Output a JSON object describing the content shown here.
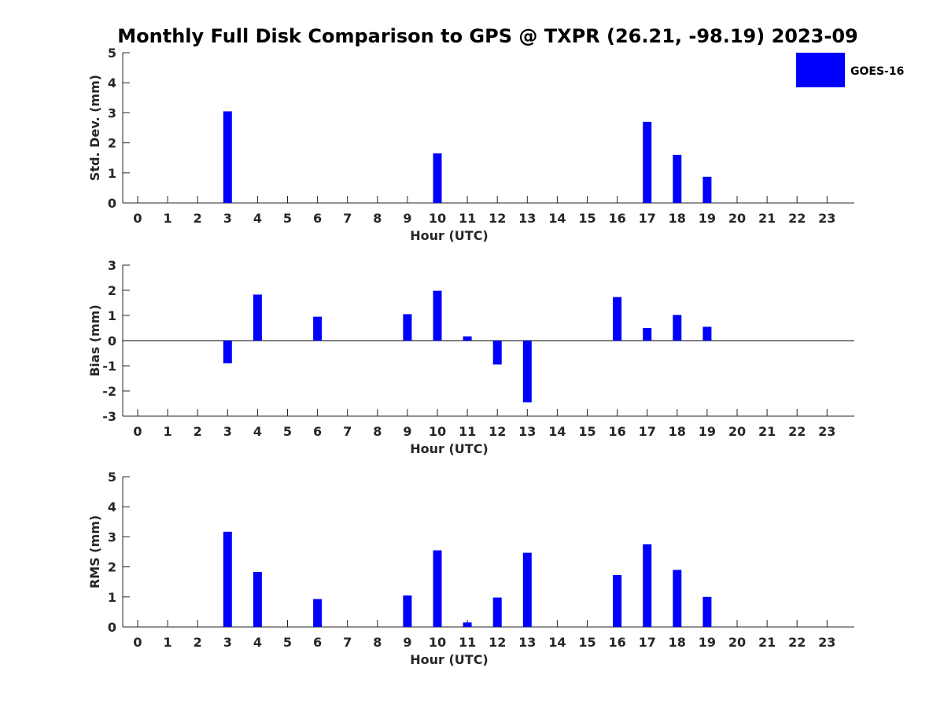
{
  "title": "Monthly Full Disk Comparison to GPS @ TXPR (26.21, -98.19) 2023-09",
  "legend": {
    "label": "GOES-16",
    "color": "#0000ff",
    "placement": "top-right"
  },
  "chart_data": [
    {
      "type": "bar",
      "name": "std-dev",
      "xlabel": "Hour (UTC)",
      "ylabel": "Std. Dev. (mm)",
      "ylim": [
        0,
        5
      ],
      "yticks": [
        0,
        1,
        2,
        3,
        4,
        5
      ],
      "categories": [
        "0",
        "1",
        "2",
        "3",
        "4",
        "5",
        "6",
        "7",
        "8",
        "9",
        "10",
        "11",
        "12",
        "13",
        "14",
        "15",
        "16",
        "17",
        "18",
        "19",
        "20",
        "21",
        "22",
        "23"
      ],
      "series": [
        {
          "name": "GOES-16",
          "color": "#0000ff",
          "values": [
            null,
            null,
            null,
            3.05,
            null,
            null,
            null,
            null,
            null,
            null,
            1.65,
            null,
            null,
            null,
            null,
            null,
            null,
            2.7,
            1.6,
            0.87,
            null,
            null,
            null,
            null
          ]
        }
      ]
    },
    {
      "type": "bar",
      "name": "bias",
      "xlabel": "Hour (UTC)",
      "ylabel": "Bias (mm)",
      "ylim": [
        -3,
        3
      ],
      "yticks": [
        -3,
        -2,
        -1,
        0,
        1,
        2,
        3
      ],
      "zero_line": true,
      "categories": [
        "0",
        "1",
        "2",
        "3",
        "4",
        "5",
        "6",
        "7",
        "8",
        "9",
        "10",
        "11",
        "12",
        "13",
        "14",
        "15",
        "16",
        "17",
        "18",
        "19",
        "20",
        "21",
        "22",
        "23"
      ],
      "series": [
        {
          "name": "GOES-16",
          "color": "#0000ff",
          "values": [
            null,
            null,
            null,
            -0.9,
            1.83,
            null,
            0.95,
            null,
            null,
            1.05,
            1.98,
            0.17,
            -0.95,
            -2.45,
            null,
            null,
            1.73,
            0.5,
            1.02,
            0.55,
            null,
            null,
            null,
            null
          ]
        }
      ]
    },
    {
      "type": "bar",
      "name": "rms",
      "xlabel": "Hour (UTC)",
      "ylabel": "RMS (mm)",
      "ylim": [
        0,
        5
      ],
      "yticks": [
        0,
        1,
        2,
        3,
        4,
        5
      ],
      "categories": [
        "0",
        "1",
        "2",
        "3",
        "4",
        "5",
        "6",
        "7",
        "8",
        "9",
        "10",
        "11",
        "12",
        "13",
        "14",
        "15",
        "16",
        "17",
        "18",
        "19",
        "20",
        "21",
        "22",
        "23"
      ],
      "series": [
        {
          "name": "GOES-16",
          "color": "#0000ff",
          "values": [
            null,
            null,
            null,
            3.17,
            1.83,
            null,
            0.93,
            null,
            null,
            1.05,
            2.55,
            0.15,
            0.98,
            2.47,
            null,
            null,
            1.73,
            2.75,
            1.9,
            1.0,
            null,
            null,
            null,
            null
          ]
        }
      ]
    }
  ]
}
